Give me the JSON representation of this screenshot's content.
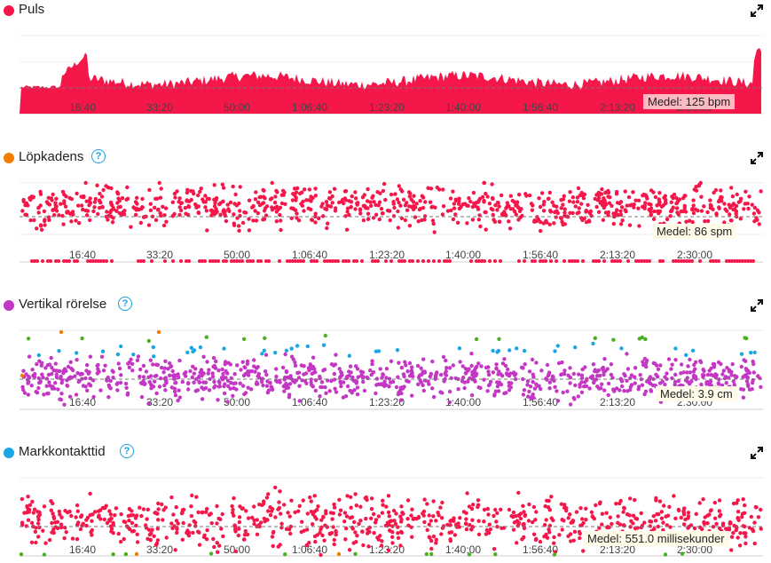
{
  "colors": {
    "red": "#f5174a",
    "orange": "#ef7d00",
    "magenta": "#c436c4",
    "blue": "#1ba7e3",
    "green": "#4caf1e",
    "gray": "#888888"
  },
  "tick_labels": [
    "16:40",
    "33:20",
    "50:00",
    "1:06:40",
    "1:23:20",
    "1:40:00",
    "1:56:40",
    "2:13:20",
    "2:30:00"
  ],
  "panels": [
    {
      "id": "puls",
      "title": "Puls",
      "dot_color": "#f5174a",
      "has_help": false,
      "avg_label": "Medel: 125 bpm",
      "expand_icon": "expand-icon"
    },
    {
      "id": "kadens",
      "title": "Löpkadens",
      "dot_color": "#ef7d00",
      "has_help": true,
      "avg_label": "Medel: 86 spm",
      "expand_icon": "expand-icon"
    },
    {
      "id": "vertikal",
      "title": "Vertikal rörelse",
      "dot_color": "#c436c4",
      "has_help": true,
      "avg_label": "Medel: 3.9 cm",
      "expand_icon": "expand-icon"
    },
    {
      "id": "kontakt",
      "title": "Markkontakttid",
      "dot_color": "#1ba7e3",
      "has_help": true,
      "avg_label": "Medel: 551.0 millisekunder",
      "expand_icon": "expand-icon"
    }
  ],
  "help_symbol": "?",
  "chart_data": [
    {
      "type": "area",
      "title": "Puls",
      "xlabel": "",
      "ylabel": "",
      "average": 125,
      "unit": "bpm",
      "x_ticks": [
        "16:40",
        "33:20",
        "50:00",
        "1:06:40",
        "1:23:20",
        "1:40:00",
        "1:56:40",
        "2:13:20",
        "2:30:00"
      ]
    },
    {
      "type": "scatter",
      "title": "Löpkadens",
      "average": 86,
      "unit": "spm",
      "x_ticks": [
        "16:40",
        "33:20",
        "50:00",
        "1:06:40",
        "1:23:20",
        "1:40:00",
        "1:56:40",
        "2:13:20",
        "2:30:00"
      ]
    },
    {
      "type": "scatter",
      "title": "Vertikal rörelse",
      "average": 3.9,
      "unit": "cm",
      "x_ticks": [
        "16:40",
        "33:20",
        "50:00",
        "1:06:40",
        "1:23:20",
        "1:40:00",
        "1:56:40",
        "2:13:20",
        "2:30:00"
      ]
    },
    {
      "type": "scatter",
      "title": "Markkontakttid",
      "average": 551.0,
      "unit": "millisekunder",
      "x_ticks": [
        "16:40",
        "33:20",
        "50:00",
        "1:06:40",
        "1:23:20",
        "1:40:00",
        "1:56:40",
        "2:13:20",
        "2:30:00"
      ]
    }
  ]
}
